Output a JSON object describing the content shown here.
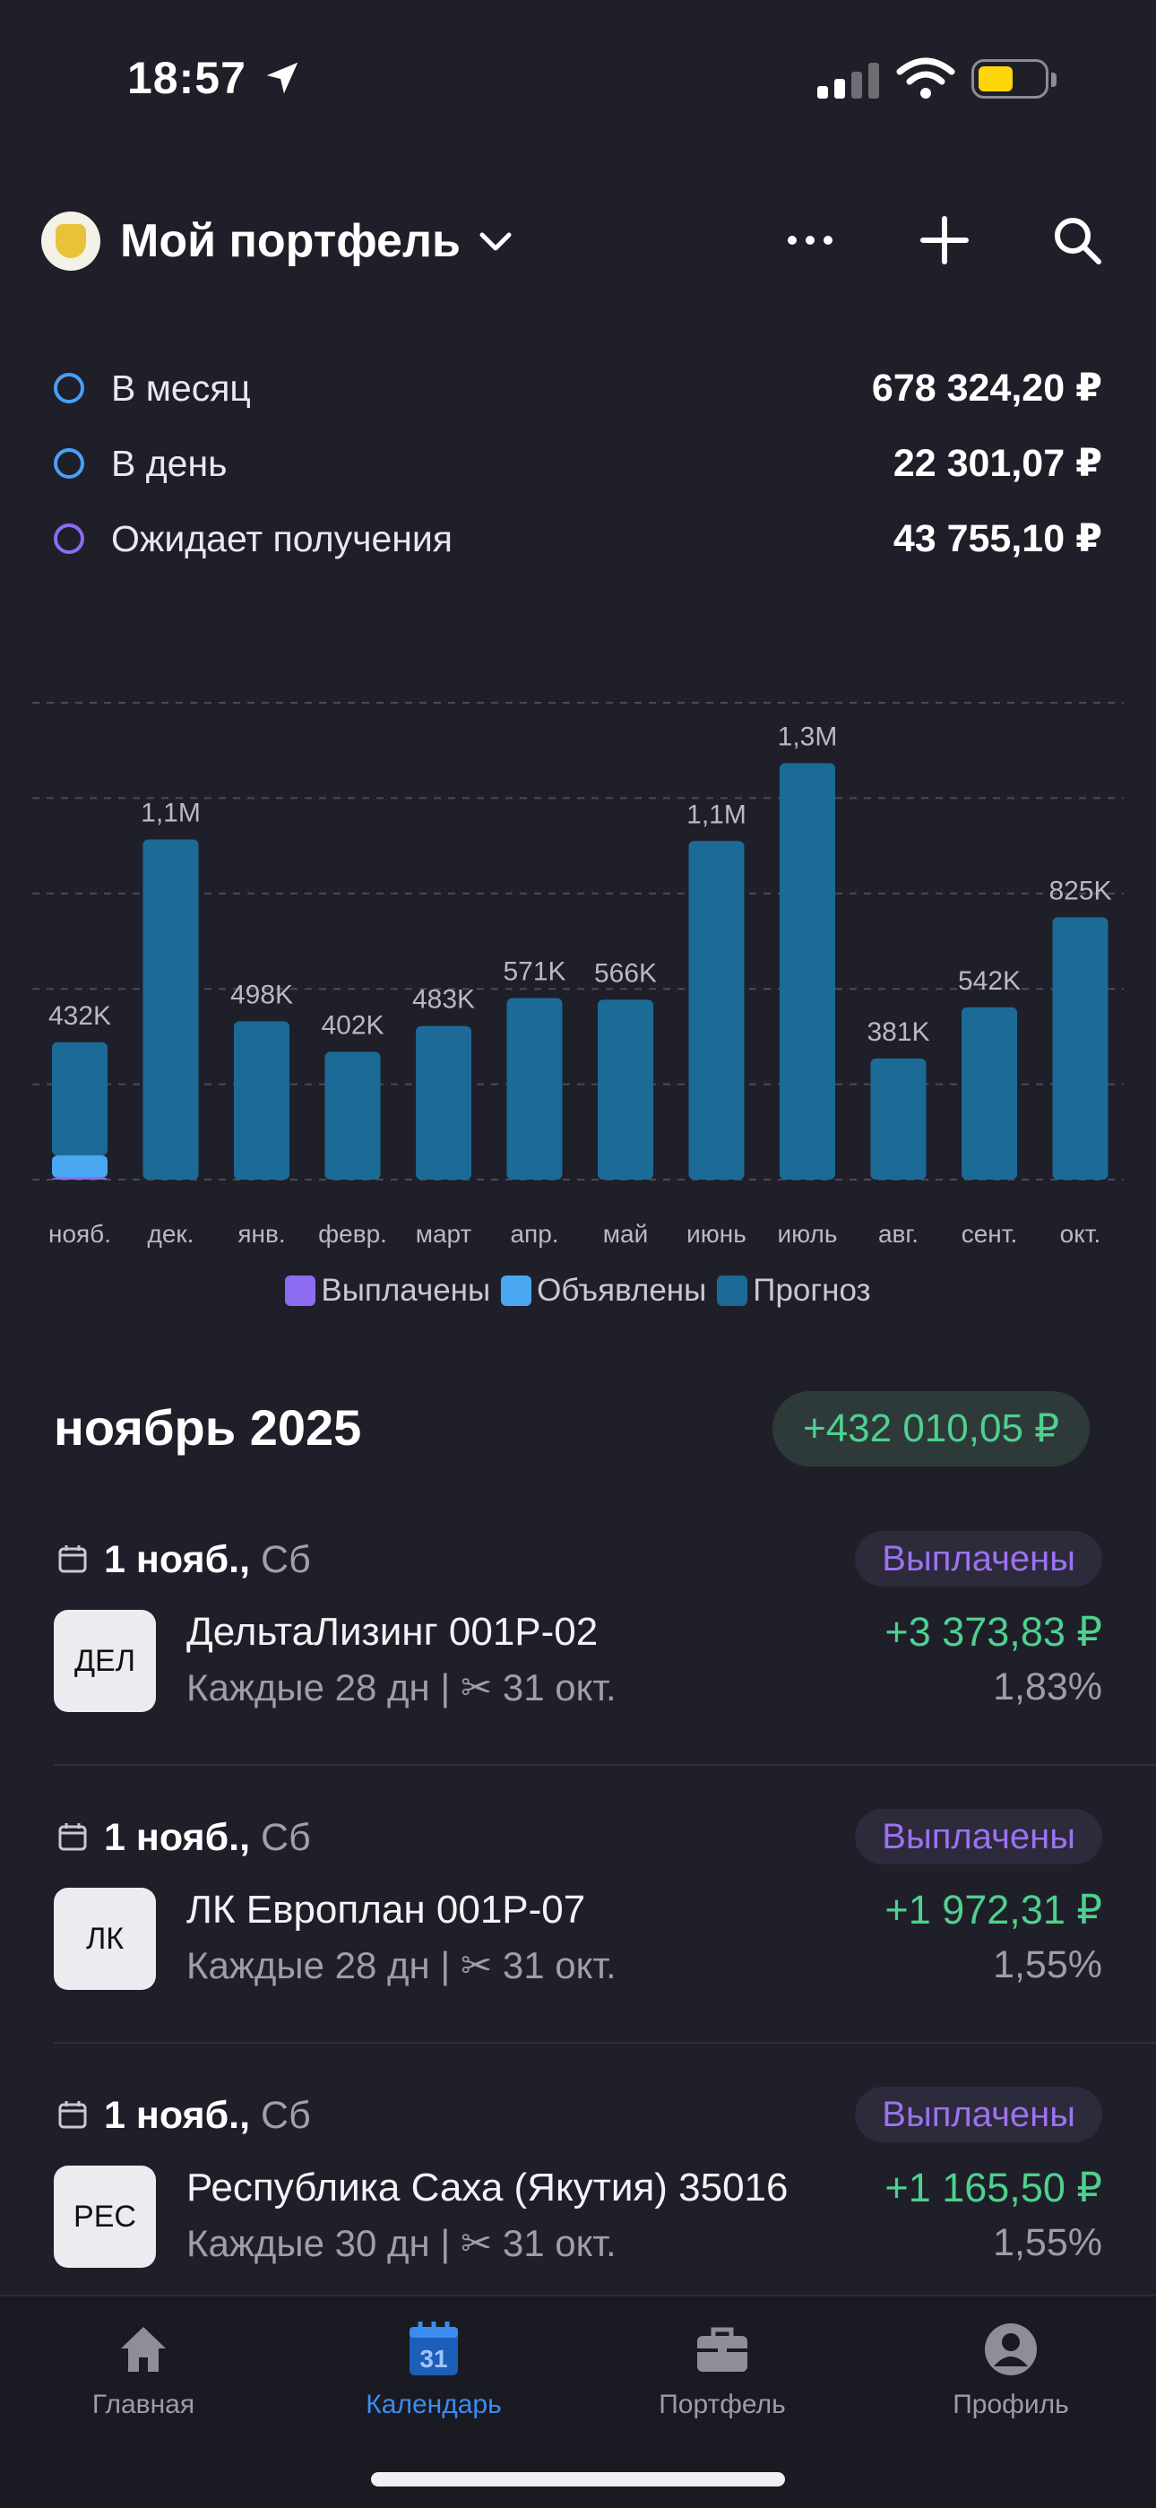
{
  "status_bar": {
    "time": "18:57"
  },
  "header": {
    "title": "Мой портфель"
  },
  "summary": [
    {
      "label": "В месяц",
      "value": "678 324,20 ₽",
      "dot_color": "#4a9ff5"
    },
    {
      "label": "В день",
      "value": "22 301,07 ₽",
      "dot_color": "#4a9ff5"
    },
    {
      "label": "Ожидает получения",
      "value": "43 755,10 ₽",
      "dot_color": "#8c6cf0"
    }
  ],
  "chart_data": {
    "type": "bar",
    "categories": [
      "нояб.",
      "дек.",
      "янв.",
      "февр.",
      "март",
      "апр.",
      "май",
      "июнь",
      "июль",
      "авг.",
      "сент.",
      "окт."
    ],
    "value_labels": [
      "432K",
      "1,1M",
      "498K",
      "402K",
      "483K",
      "571K",
      "566K",
      "1,1M",
      "1,3M",
      "381K",
      "542K",
      "825K"
    ],
    "series": [
      {
        "name": "Выплачены",
        "color": "#8c6cf0",
        "values": [
          6000,
          0,
          0,
          0,
          0,
          0,
          0,
          0,
          0,
          0,
          0,
          0
        ]
      },
      {
        "name": "Объявлены",
        "color": "#4aa8f2",
        "values": [
          70000,
          0,
          0,
          0,
          0,
          0,
          0,
          0,
          0,
          0,
          0,
          0
        ]
      },
      {
        "name": "Прогноз",
        "color": "#1b6b96",
        "values": [
          356000,
          1070000,
          498000,
          402000,
          483000,
          571000,
          566000,
          1065000,
          1310000,
          381000,
          542000,
          825000
        ]
      }
    ],
    "stacked": true,
    "ylim": [
      0,
      1500000
    ],
    "grid": true,
    "legend_position": "bottom"
  },
  "month": {
    "title": "ноябрь 2025",
    "total": "+432 010,05 ₽"
  },
  "events": [
    {
      "date": "1 нояб.,",
      "dow": "Сб",
      "status": "Выплачены",
      "avatar": "ДЕЛ",
      "name": "ДельтаЛизинг 001P-02",
      "schedule": "Каждые 28 дн | ✂ 31 окт.",
      "amount": "+3 373,83 ₽",
      "pct": "1,83%"
    },
    {
      "date": "1 нояб.,",
      "dow": "Сб",
      "status": "Выплачены",
      "avatar": "ЛК",
      "name": "ЛК Европлан 001P-07",
      "schedule": "Каждые 28 дн | ✂ 31 окт.",
      "amount": "+1 972,31 ₽",
      "pct": "1,55%"
    },
    {
      "date": "1 нояб.,",
      "dow": "Сб",
      "status": "Выплачены",
      "avatar": "РЕС",
      "name": "Республика Саха (Якутия) 35016",
      "schedule": "Каждые 30 дн | ✂ 31 окт.",
      "amount": "+1 165,50 ₽",
      "pct": "1,55%"
    }
  ],
  "tabs": [
    {
      "label": "Главная",
      "icon": "house-icon"
    },
    {
      "label": "Календарь",
      "icon": "calendar-icon",
      "badge": "31",
      "active": true
    },
    {
      "label": "Портфель",
      "icon": "briefcase-icon"
    },
    {
      "label": "Профиль",
      "icon": "person-icon"
    }
  ]
}
